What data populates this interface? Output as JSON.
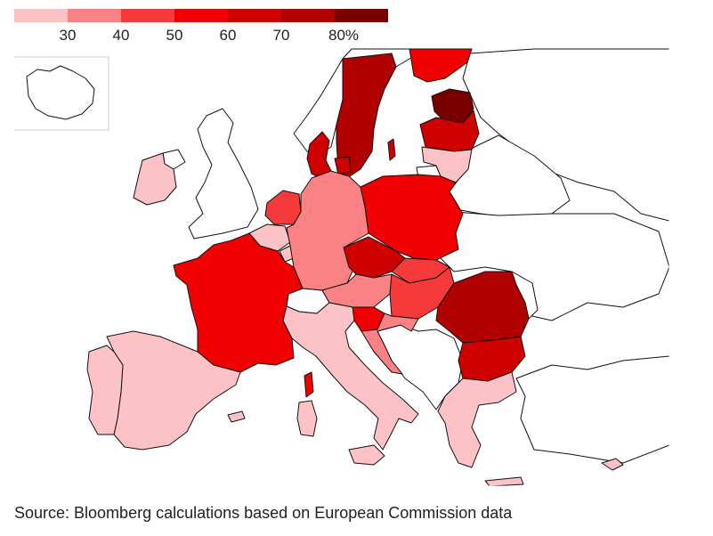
{
  "legend": {
    "labels": [
      "30",
      "40",
      "50",
      "60",
      "70",
      "80%"
    ],
    "colors": [
      "#fdc2c6",
      "#fa8184",
      "#f6393b",
      "#f00000",
      "#cf0000",
      "#b00000",
      "#7a0000"
    ]
  },
  "source": "Source: Bloomberg calculations based on European Commission data",
  "styles": {
    "stroke": "#111111",
    "no_data": "#ffffff"
  },
  "regions": [
    {
      "id": "iceland",
      "level": -1
    },
    {
      "id": "ireland",
      "level": 0
    },
    {
      "id": "northern-ireland",
      "level": -1
    },
    {
      "id": "great-britain",
      "level": -1
    },
    {
      "id": "norway",
      "level": -1
    },
    {
      "id": "sweden",
      "level": 5
    },
    {
      "id": "finland",
      "level": 3
    },
    {
      "id": "estonia",
      "level": 6
    },
    {
      "id": "latvia",
      "level": 4
    },
    {
      "id": "lithuania",
      "level": 0
    },
    {
      "id": "russia-kaliningrad",
      "level": -1
    },
    {
      "id": "denmark",
      "level": 4
    },
    {
      "id": "gotland",
      "level": 4
    },
    {
      "id": "netherlands",
      "level": 2
    },
    {
      "id": "belgium",
      "level": 0
    },
    {
      "id": "luxembourg",
      "level": 0
    },
    {
      "id": "germany",
      "level": 1
    },
    {
      "id": "poland",
      "level": 3
    },
    {
      "id": "czechia",
      "level": 4
    },
    {
      "id": "slovakia",
      "level": 2
    },
    {
      "id": "austria",
      "level": 1
    },
    {
      "id": "hungary",
      "level": 2
    },
    {
      "id": "slovenia",
      "level": 3
    },
    {
      "id": "croatia",
      "level": 1
    },
    {
      "id": "romania",
      "level": 5
    },
    {
      "id": "bulgaria",
      "level": 4
    },
    {
      "id": "greece",
      "level": 0
    },
    {
      "id": "crete",
      "level": 0
    },
    {
      "id": "cyprus",
      "level": 0
    },
    {
      "id": "france",
      "level": 3
    },
    {
      "id": "corsica",
      "level": 3
    },
    {
      "id": "spain",
      "level": 0
    },
    {
      "id": "portugal",
      "level": 0
    },
    {
      "id": "balearics",
      "level": 0
    },
    {
      "id": "italy",
      "level": 0
    },
    {
      "id": "sardinia",
      "level": 0
    },
    {
      "id": "sicily",
      "level": 0
    },
    {
      "id": "switzerland",
      "level": -1
    },
    {
      "id": "belarus",
      "level": -1
    },
    {
      "id": "ukraine",
      "level": -1
    },
    {
      "id": "moldova",
      "level": -1
    },
    {
      "id": "turkey",
      "level": -1
    },
    {
      "id": "western-balkans",
      "level": -1
    },
    {
      "id": "russia",
      "level": -1
    }
  ]
}
